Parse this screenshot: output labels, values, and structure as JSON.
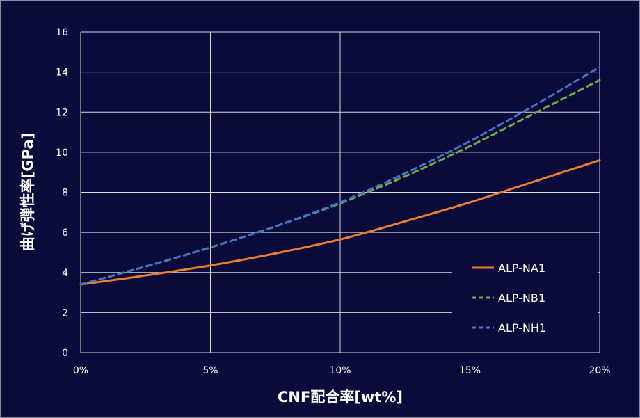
{
  "chart_data": {
    "type": "line",
    "title": "",
    "xlabel": "CNF配合率[wt%]",
    "ylabel": "曲げ弾性率[GPa]",
    "xlim": [
      0,
      20
    ],
    "ylim": [
      0,
      16
    ],
    "x_ticks": [
      0,
      5,
      10,
      15,
      20
    ],
    "x_tick_labels": [
      "0%",
      "5%",
      "10%",
      "15%",
      "20%"
    ],
    "y_ticks": [
      0,
      2,
      4,
      6,
      8,
      10,
      12,
      14,
      16
    ],
    "y_tick_labels": [
      "0",
      "2",
      "4",
      "6",
      "8",
      "10",
      "12",
      "14",
      "16"
    ],
    "grid": true,
    "legend_position": "bottom-right",
    "x": [
      0,
      2.5,
      5,
      7.5,
      10,
      12.5,
      15,
      17.5,
      20
    ],
    "series": [
      {
        "name": "ALP-NA1",
        "color": "#ed7d31",
        "dash": "solid",
        "values": [
          3.4,
          3.85,
          4.35,
          4.95,
          5.65,
          6.55,
          7.5,
          8.55,
          9.6
        ]
      },
      {
        "name": "ALP-NB1",
        "color": "#70ad47",
        "dash": "dashed",
        "values": [
          3.4,
          4.3,
          5.25,
          6.3,
          7.45,
          8.8,
          10.3,
          11.95,
          13.6
        ]
      },
      {
        "name": "ALP-NH1",
        "color": "#4472c4",
        "dash": "dashed",
        "values": [
          3.4,
          4.3,
          5.25,
          6.3,
          7.5,
          8.95,
          10.55,
          12.35,
          14.25
        ]
      }
    ]
  }
}
